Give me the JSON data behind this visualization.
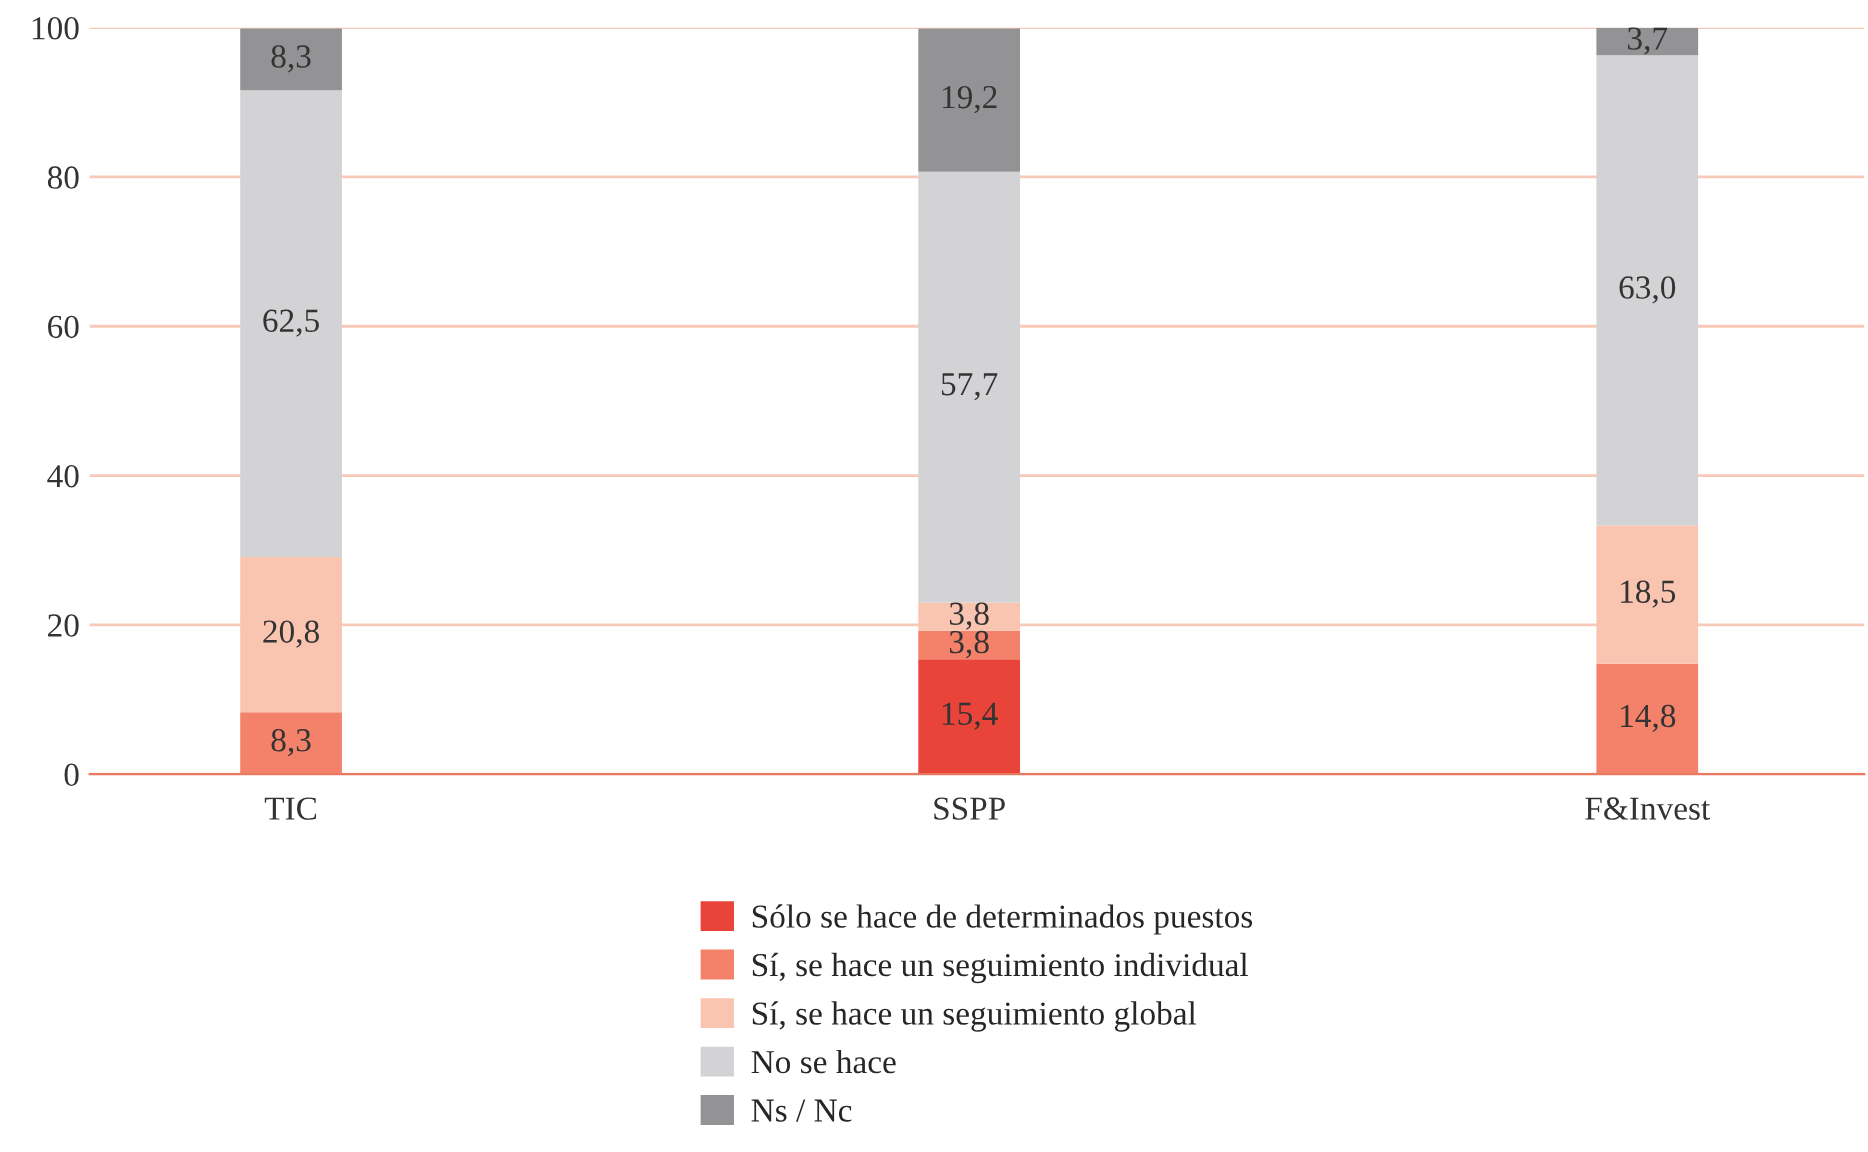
{
  "chart_data": {
    "type": "bar",
    "stacked": true,
    "categories": [
      "TIC",
      "SSPP",
      "F&Invest"
    ],
    "series": [
      {
        "name": "Sólo se hace de determinados puestos",
        "color": "#e8443a",
        "values": [
          null,
          15.4,
          null
        ],
        "value_labels": [
          null,
          "15,4",
          null
        ]
      },
      {
        "name": "Sí, se hace un seguimiento individual",
        "color": "#f4826a",
        "values": [
          8.3,
          3.8,
          14.8
        ],
        "value_labels": [
          "8,3",
          "3,8",
          "14,8"
        ]
      },
      {
        "name": "Sí, se hace un seguimiento global",
        "color": "#f9c4b0",
        "values": [
          20.8,
          3.8,
          18.5
        ],
        "value_labels": [
          "20,8",
          "3,8",
          "18,5"
        ]
      },
      {
        "name": "No se hace",
        "color": "#d3d3d5",
        "values": [
          62.5,
          57.7,
          63.0
        ],
        "value_labels": [
          "62,5",
          "57,7",
          "63,0"
        ]
      },
      {
        "name": "Ns / Nc",
        "color": "#939395",
        "values": [
          8.3,
          19.2,
          3.7
        ],
        "value_labels": [
          "8,3",
          "19,2",
          "3,7"
        ]
      }
    ],
    "ylim": [
      0,
      100
    ],
    "yticks": [
      0,
      20,
      40,
      60,
      80,
      100
    ],
    "grid": "y",
    "legend": "bottom"
  }
}
